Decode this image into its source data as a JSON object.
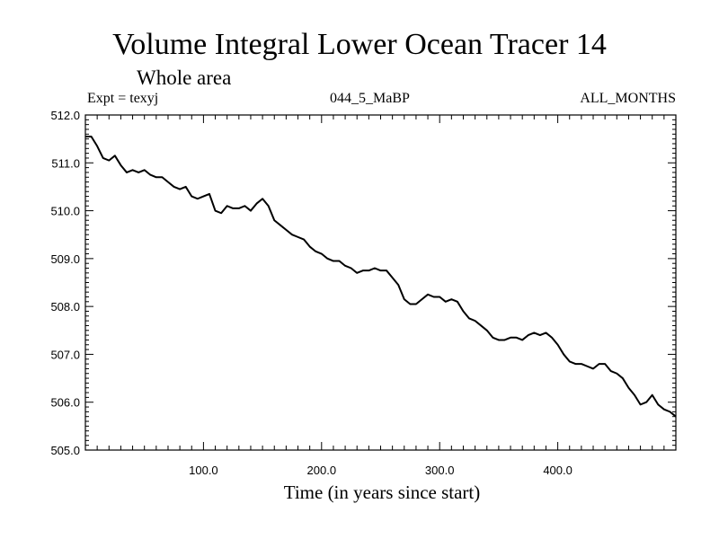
{
  "header": {
    "title": "Volume Integral Lower Ocean Tracer 14",
    "subtitle": "Whole area",
    "expt": "Expt = texyj",
    "run": "044_5_MaBP",
    "months": "ALL_MONTHS"
  },
  "chart_data": {
    "type": "line",
    "title": "Volume Integral Lower Ocean Tracer 14",
    "subtitle": "Whole area",
    "xlabel": "Time (in years since start)",
    "ylabel": "",
    "xlim": [
      0,
      500
    ],
    "ylim": [
      505.0,
      512.0
    ],
    "xticks": [
      100,
      200,
      300,
      400
    ],
    "xtick_labels": [
      "100.0",
      "200.0",
      "300.0",
      "400.0"
    ],
    "yticks": [
      505,
      506,
      507,
      508,
      509,
      510,
      511,
      512
    ],
    "ytick_labels": [
      "505.0",
      "506.0",
      "507.0",
      "508.0",
      "509.0",
      "510.0",
      "511.0",
      "512.0"
    ],
    "grid": false,
    "series": [
      {
        "color": "#000000",
        "x": [
          0,
          5,
          10,
          15,
          20,
          25,
          30,
          35,
          40,
          45,
          50,
          55,
          60,
          65,
          70,
          75,
          80,
          85,
          90,
          95,
          100,
          105,
          110,
          115,
          120,
          125,
          130,
          135,
          140,
          145,
          150,
          155,
          160,
          165,
          170,
          175,
          180,
          185,
          190,
          195,
          200,
          205,
          210,
          215,
          220,
          225,
          230,
          235,
          240,
          245,
          250,
          255,
          260,
          265,
          270,
          275,
          280,
          285,
          290,
          295,
          300,
          305,
          310,
          315,
          320,
          325,
          330,
          335,
          340,
          345,
          350,
          355,
          360,
          365,
          370,
          375,
          380,
          385,
          390,
          395,
          400,
          405,
          410,
          415,
          420,
          425,
          430,
          435,
          440,
          445,
          450,
          455,
          460,
          465,
          470,
          475,
          480,
          485,
          490,
          495,
          500
        ],
        "y": [
          511.55,
          511.55,
          511.35,
          511.1,
          511.05,
          511.15,
          510.95,
          510.8,
          510.85,
          510.8,
          510.85,
          510.75,
          510.7,
          510.7,
          510.6,
          510.5,
          510.45,
          510.5,
          510.3,
          510.25,
          510.3,
          510.35,
          510.0,
          509.95,
          510.1,
          510.05,
          510.05,
          510.1,
          510.0,
          510.15,
          510.25,
          510.1,
          509.8,
          509.7,
          509.6,
          509.5,
          509.45,
          509.4,
          509.25,
          509.15,
          509.1,
          509.0,
          508.95,
          508.95,
          508.85,
          508.8,
          508.7,
          508.75,
          508.75,
          508.8,
          508.75,
          508.75,
          508.6,
          508.45,
          508.15,
          508.05,
          508.05,
          508.15,
          508.25,
          508.2,
          508.2,
          508.1,
          508.15,
          508.1,
          507.9,
          507.75,
          507.7,
          507.6,
          507.5,
          507.35,
          507.3,
          507.3,
          507.35,
          507.35,
          507.3,
          507.4,
          507.45,
          507.4,
          507.45,
          507.35,
          507.2,
          507.0,
          506.85,
          506.8,
          506.8,
          506.75,
          506.7,
          506.8,
          506.8,
          506.65,
          506.6,
          506.5,
          506.3,
          506.15,
          505.95,
          506.0,
          506.15,
          505.95,
          505.85,
          505.8,
          505.7
        ]
      }
    ]
  }
}
